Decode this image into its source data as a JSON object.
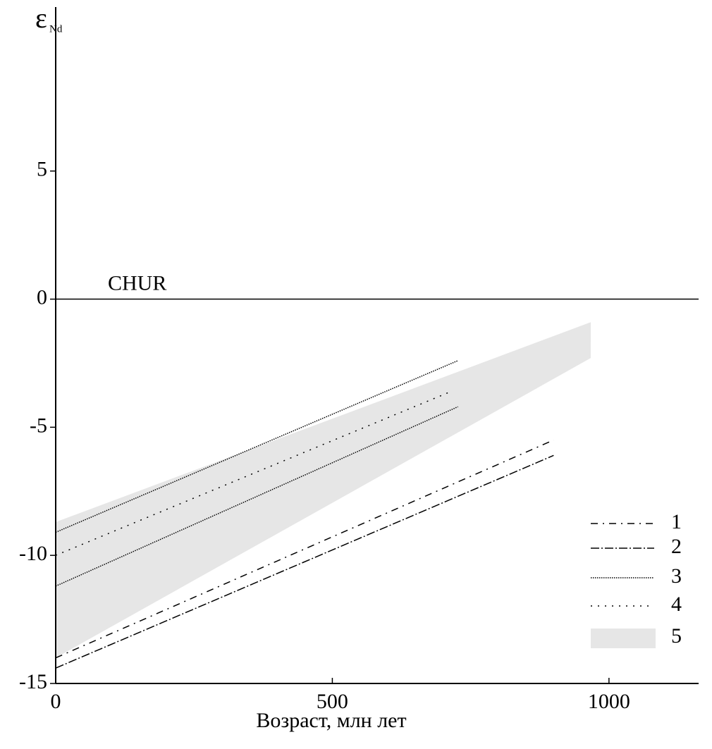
{
  "chart_data": {
    "type": "line",
    "y_label": "ε",
    "y_label_sub": "Nd",
    "x_label": "Возраст, млн лет",
    "xlim": [
      0,
      1162
    ],
    "ylim": [
      -15,
      11.4
    ],
    "xticks": [
      0,
      500,
      1000
    ],
    "yticks": [
      -15,
      -10,
      -5,
      0,
      5
    ],
    "reference_line": {
      "value": 0,
      "label": "CHUR"
    },
    "series": [
      {
        "name": "1",
        "color": "#000000",
        "dash": "10 7 2 7",
        "lines": [
          {
            "x": [
              0,
              900
            ],
            "values": [
              -14.0,
              -5.5
            ]
          }
        ]
      },
      {
        "name": "2",
        "color": "#000000",
        "dash": "12 3 2 3",
        "lines": [
          {
            "x": [
              0,
              900
            ],
            "values": [
              -14.4,
              -6.1
            ]
          }
        ]
      },
      {
        "name": "3",
        "color": "#000000",
        "dash": "1.5 1.5",
        "lines": [
          {
            "x": [
              0,
              727
            ],
            "values": [
              -9.1,
              -2.4
            ]
          },
          {
            "x": [
              0,
              727
            ],
            "values": [
              -11.2,
              -4.2
            ]
          }
        ]
      },
      {
        "name": "4",
        "color": "#000000",
        "dash": "2 8",
        "lines": [
          {
            "x": [
              0,
              715
            ],
            "values": [
              -10.0,
              -3.6
            ]
          }
        ]
      }
    ],
    "band": {
      "name": "5",
      "color": "#e6e6e6",
      "x": [
        0,
        967
      ],
      "upper": [
        -8.7,
        -0.9
      ],
      "lower": [
        -14.0,
        -2.3
      ]
    }
  }
}
